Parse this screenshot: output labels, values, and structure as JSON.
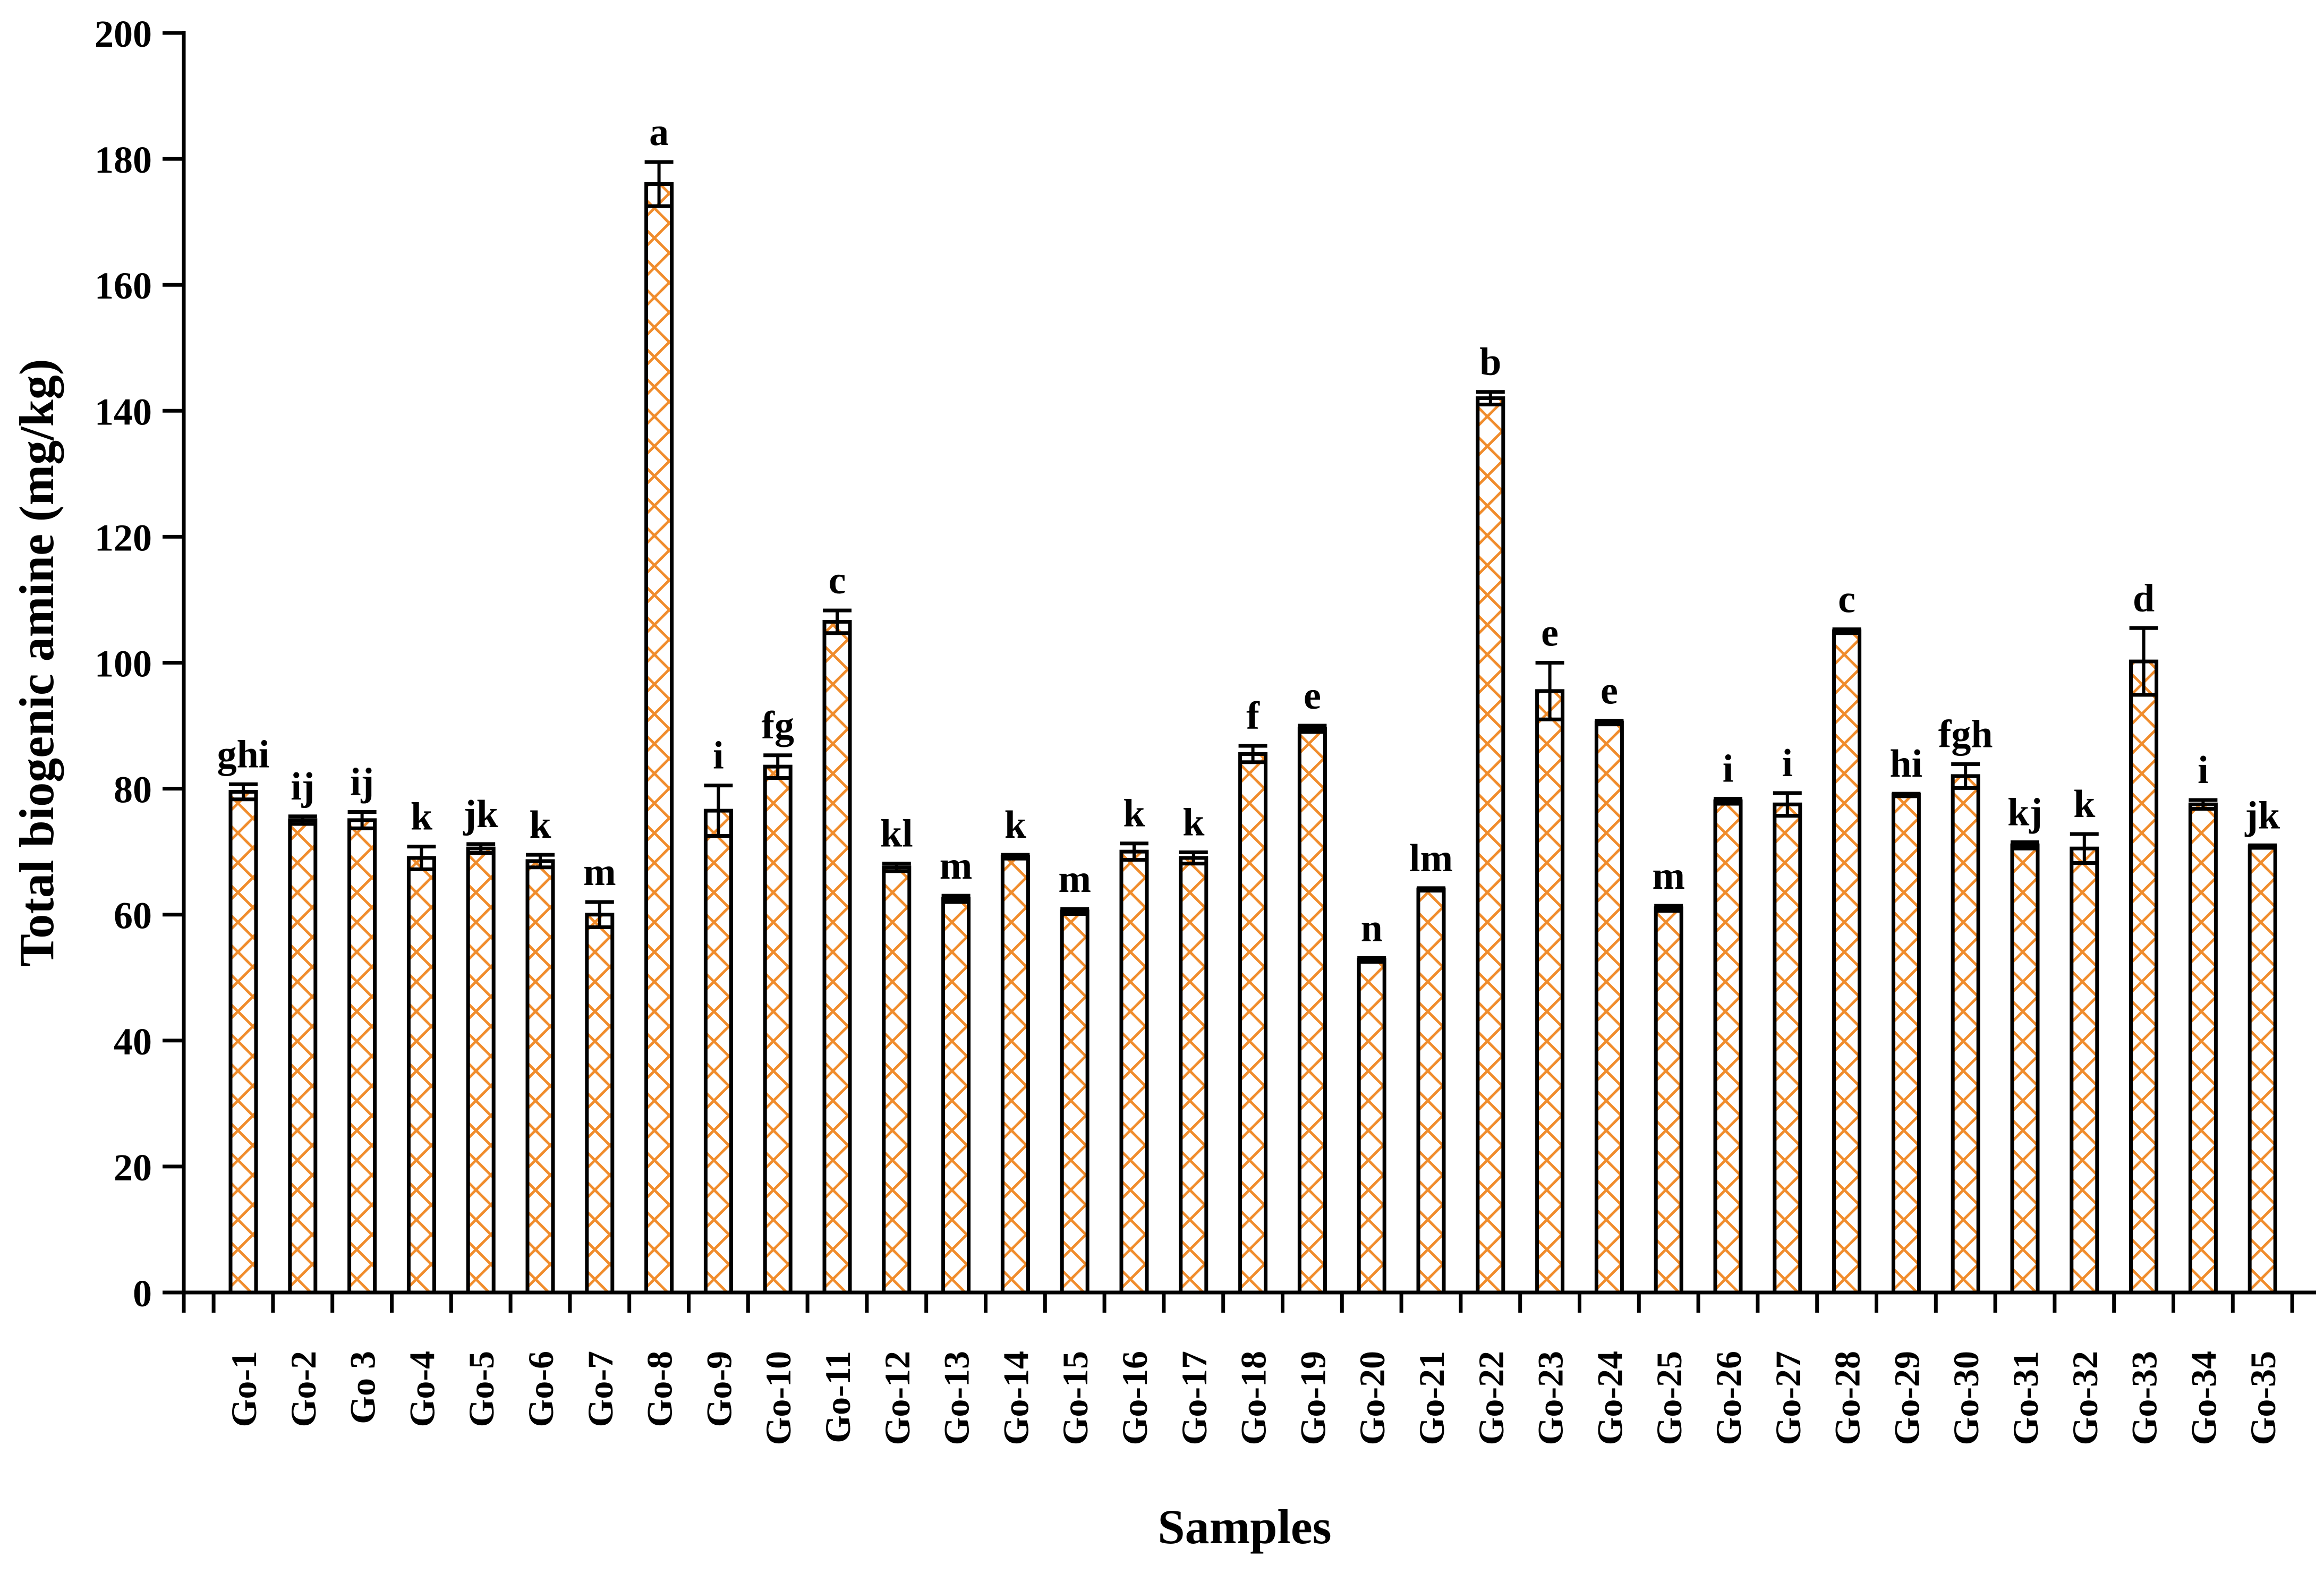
{
  "chart_data": {
    "type": "bar",
    "xlabel": "Samples",
    "ylabel": "Total biogenic amine (mg/kg)",
    "ylim": [
      0,
      200
    ],
    "yticks": [
      0,
      20,
      40,
      60,
      80,
      100,
      120,
      140,
      160,
      180,
      200
    ],
    "grid": false,
    "colors": {
      "bar_pattern": "#f08c2c",
      "bar_edge": "#000000",
      "axis": "#000000",
      "background": "#ffffff"
    },
    "categories": [
      "Go-1",
      "Go-2",
      "Go 3",
      "Go-4",
      "Go-5",
      "Go-6",
      "Go-7",
      "Go-8",
      "Go-9",
      "Go-10",
      "Go-11",
      "Go-12",
      "Go-13",
      "Go-14",
      "Go-15",
      "Go-16",
      "Go-17",
      "Go-18",
      "Go-19",
      "Go-20",
      "Go-21",
      "Go-22",
      "Go-23",
      "Go-24",
      "Go-25",
      "Go-26",
      "Go-27",
      "Go-28",
      "Go-29",
      "Go-30",
      "Go-31",
      "Go-32",
      "Go-33",
      "Go-34",
      "Go-35"
    ],
    "values": [
      79.5,
      75,
      75,
      69,
      70.5,
      68.5,
      60,
      176,
      76.5,
      83.5,
      106.5,
      67.5,
      62.5,
      69.2,
      60.5,
      70,
      69,
      85.5,
      89.5,
      52.8,
      64,
      142,
      95.5,
      90.5,
      61,
      78,
      77.5,
      105,
      79,
      82,
      71,
      70.5,
      100.2,
      77.5,
      70.8
    ],
    "errors": [
      1.2,
      0.6,
      1.3,
      1.8,
      0.7,
      1.0,
      2.0,
      3.5,
      4.0,
      1.8,
      1.8,
      0.6,
      0.5,
      0.3,
      0.4,
      1.3,
      0.9,
      1.3,
      0.5,
      0.3,
      0.2,
      1.0,
      4.5,
      0.3,
      0.4,
      0.4,
      1.8,
      0.3,
      0.2,
      1.9,
      0.5,
      2.3,
      5.3,
      0.7,
      0.2
    ],
    "letters": [
      "ghi",
      "ij",
      "ij",
      "k",
      "jk",
      "k",
      "m",
      "a",
      "i",
      "fg",
      "c",
      "kl",
      "m",
      "k",
      "m",
      "k",
      "k",
      "f",
      "e",
      "n",
      "lm",
      "b",
      "e",
      "e",
      "m",
      "i",
      "i",
      "c",
      "hi",
      "fgh",
      "kj",
      "k",
      "d",
      "i",
      "jk"
    ]
  }
}
